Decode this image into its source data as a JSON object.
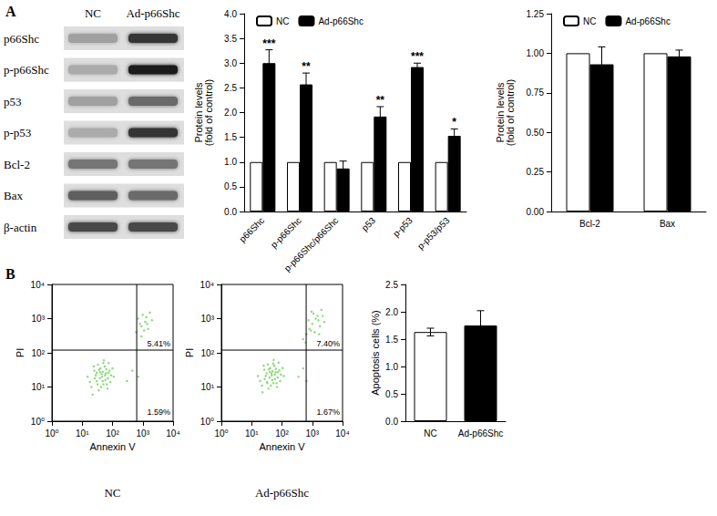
{
  "panels": [
    "A",
    "B"
  ],
  "blot": {
    "columns": [
      "NC",
      "Ad-p66Shc"
    ],
    "rows": [
      {
        "label": "p66Shc",
        "intensity": [
          0.35,
          0.85
        ]
      },
      {
        "label": "p-p66Shc",
        "intensity": [
          0.3,
          0.95
        ]
      },
      {
        "label": "p53",
        "intensity": [
          0.35,
          0.6
        ]
      },
      {
        "label": "p-p53",
        "intensity": [
          0.3,
          0.85
        ]
      },
      {
        "label": "Bcl-2",
        "intensity": [
          0.55,
          0.55
        ]
      },
      {
        "label": "Bax",
        "intensity": [
          0.65,
          0.6
        ]
      },
      {
        "label": "β-actin",
        "intensity": [
          0.75,
          0.75
        ]
      }
    ]
  },
  "chart_data": [
    {
      "type": "bar",
      "y_label": "Protein levels\n(fold of control)",
      "categories": [
        "p66Shc",
        "p-p66Shc",
        "p-p66Shc/p66Shc",
        "p53",
        "p-p53",
        "p-p53/p53"
      ],
      "series": [
        {
          "name": "NC",
          "color": "#ffffff",
          "values": [
            1,
            1,
            1,
            1,
            1,
            1
          ]
        },
        {
          "name": "Ad-p66Shc",
          "color": "#000000",
          "values": [
            3.0,
            2.57,
            0.87,
            1.92,
            2.92,
            1.53
          ],
          "errors": [
            0.27,
            0.23,
            0.15,
            0.2,
            0.08,
            0.14
          ]
        }
      ],
      "significance": [
        "***",
        "**",
        null,
        "**",
        "***",
        "*"
      ],
      "ylim": [
        0,
        4
      ],
      "yticks": [
        {
          "value": 0,
          "label": "0.0"
        },
        0.5,
        {
          "value": 1,
          "label": "1.0"
        },
        1.5,
        {
          "value": 2,
          "label": "2.0"
        },
        2.5,
        {
          "value": 3,
          "label": "3.0"
        },
        3.5,
        {
          "value": 4,
          "label": "4.0"
        }
      ],
      "legend": "upper left",
      "grid": false
    },
    {
      "type": "bar",
      "y_label": "Protein levels\n(fold of control)",
      "categories": [
        "Bcl-2",
        "Bax"
      ],
      "series": [
        {
          "name": "NC",
          "color": "#ffffff",
          "values": [
            1,
            1
          ]
        },
        {
          "name": "Ad-p66Shc",
          "color": "#000000",
          "values": [
            0.93,
            0.98
          ],
          "errors": [
            0.11,
            0.04
          ]
        }
      ],
      "ylim": [
        0,
        1.25
      ],
      "yticks": [
        {
          "value": 0,
          "label": "0.00"
        },
        0.25,
        {
          "value": 0.5,
          "label": "0.50"
        },
        0.75,
        {
          "value": 1,
          "label": "1.00"
        },
        1.25
      ],
      "legend": "upper left",
      "grid": false
    },
    {
      "type": "scatter",
      "caption": "NC",
      "x_label": "Annexin V",
      "y_label": "PI",
      "log": true,
      "xlim": [
        1,
        10000
      ],
      "ylim": [
        1,
        10000
      ],
      "xticks": [
        {
          "value": 1,
          "label": "10⁰"
        },
        {
          "value": 10,
          "label": "10¹"
        },
        {
          "value": 100,
          "label": "10²"
        },
        {
          "value": 1000,
          "label": "10³"
        },
        {
          "value": 10000,
          "label": "10⁴"
        }
      ],
      "yticks": [
        {
          "value": 1,
          "label": "10⁰"
        },
        {
          "value": 10,
          "label": "10¹"
        },
        {
          "value": 100,
          "label": "10²"
        },
        {
          "value": 1000,
          "label": "10³"
        },
        {
          "value": 10000,
          "label": "10⁴"
        }
      ],
      "color": "#74cf62",
      "points": [
        [
          20,
          10
        ],
        [
          30,
          15
        ],
        [
          45,
          20
        ],
        [
          60,
          25
        ],
        [
          25,
          30
        ],
        [
          35,
          8
        ],
        [
          50,
          12
        ],
        [
          70,
          18
        ],
        [
          40,
          35
        ],
        [
          28,
          22
        ],
        [
          55,
          40
        ],
        [
          80,
          30
        ],
        [
          18,
          14
        ],
        [
          38,
          18
        ],
        [
          65,
          12
        ],
        [
          90,
          22
        ],
        [
          48,
          28
        ],
        [
          33,
          45
        ],
        [
          22,
          6
        ],
        [
          75,
          50
        ],
        [
          42,
          10
        ],
        [
          58,
          16
        ],
        [
          100,
          35
        ],
        [
          30,
          26
        ],
        [
          52,
          60
        ],
        [
          15,
          20
        ],
        [
          68,
          9
        ],
        [
          44,
          24
        ],
        [
          36,
          32
        ],
        [
          85,
          14
        ],
        [
          26,
          18
        ],
        [
          62,
          33
        ],
        [
          47,
          15
        ],
        [
          39,
          27
        ],
        [
          110,
          20
        ],
        [
          24,
          40
        ],
        [
          57,
          22
        ],
        [
          73,
          26
        ],
        [
          32,
          12
        ],
        [
          50,
          50
        ],
        [
          300,
          15
        ],
        [
          450,
          30
        ],
        [
          700,
          20
        ],
        [
          600,
          400
        ],
        [
          900,
          600
        ],
        [
          1200,
          800
        ],
        [
          700,
          1000
        ],
        [
          1500,
          500
        ],
        [
          1000,
          1300
        ],
        [
          2000,
          900
        ],
        [
          800,
          700
        ],
        [
          1300,
          1100
        ],
        [
          1700,
          1500
        ],
        [
          1100,
          450
        ],
        [
          900,
          300
        ],
        [
          1400,
          700
        ]
      ],
      "gates": {
        "x": 630,
        "y": 120
      },
      "quadrant_labels": {
        "upper_right": "5.41%",
        "lower_right": "1.59%"
      },
      "grid": false
    },
    {
      "type": "scatter",
      "caption": "Ad-p66Shc",
      "x_label": "Annexin V",
      "y_label": "PI",
      "log": true,
      "xlim": [
        1,
        10000
      ],
      "ylim": [
        1,
        10000
      ],
      "xticks": [
        {
          "value": 1,
          "label": "10⁰"
        },
        {
          "value": 10,
          "label": "10¹"
        },
        {
          "value": 100,
          "label": "10²"
        },
        {
          "value": 1000,
          "label": "10³"
        },
        {
          "value": 10000,
          "label": "10⁴"
        }
      ],
      "yticks": [
        {
          "value": 1,
          "label": "10⁰"
        },
        {
          "value": 10,
          "label": "10¹"
        },
        {
          "value": 100,
          "label": "10²"
        },
        {
          "value": 1000,
          "label": "10³"
        },
        {
          "value": 10000,
          "label": "10⁴"
        }
      ],
      "color": "#74cf62",
      "points": [
        [
          22,
          11
        ],
        [
          32,
          14
        ],
        [
          46,
          22
        ],
        [
          62,
          27
        ],
        [
          26,
          32
        ],
        [
          36,
          9
        ],
        [
          52,
          13
        ],
        [
          72,
          19
        ],
        [
          41,
          36
        ],
        [
          29,
          21
        ],
        [
          56,
          42
        ],
        [
          82,
          31
        ],
        [
          19,
          15
        ],
        [
          39,
          19
        ],
        [
          66,
          13
        ],
        [
          92,
          23
        ],
        [
          49,
          29
        ],
        [
          34,
          46
        ],
        [
          23,
          7
        ],
        [
          77,
          52
        ],
        [
          43,
          11
        ],
        [
          59,
          17
        ],
        [
          105,
          36
        ],
        [
          31,
          25
        ],
        [
          53,
          62
        ],
        [
          16,
          21
        ],
        [
          69,
          10
        ],
        [
          45,
          25
        ],
        [
          37,
          33
        ],
        [
          87,
          15
        ],
        [
          27,
          17
        ],
        [
          63,
          34
        ],
        [
          48,
          16
        ],
        [
          40,
          28
        ],
        [
          115,
          21
        ],
        [
          25,
          42
        ],
        [
          58,
          23
        ],
        [
          74,
          27
        ],
        [
          33,
          13
        ],
        [
          51,
          48
        ],
        [
          350,
          20
        ],
        [
          500,
          35
        ],
        [
          650,
          15
        ],
        [
          500,
          250
        ],
        [
          650,
          350
        ],
        [
          800,
          500
        ],
        [
          1000,
          700
        ],
        [
          1200,
          400
        ],
        [
          1600,
          900
        ],
        [
          2200,
          1200
        ],
        [
          750,
          900
        ],
        [
          950,
          1600
        ],
        [
          1800,
          600
        ],
        [
          1300,
          1000
        ],
        [
          2500,
          800
        ],
        [
          600,
          200
        ],
        [
          1100,
          1400
        ],
        [
          1500,
          1200
        ],
        [
          900,
          450
        ],
        [
          1700,
          350
        ],
        [
          2000,
          1800
        ]
      ],
      "gates": {
        "x": 630,
        "y": 120
      },
      "quadrant_labels": {
        "upper_right": "7.40%",
        "lower_right": "1.67%"
      },
      "grid": false
    },
    {
      "type": "bar",
      "y_label": "Apoptosis cells (%)",
      "categories": [
        "NC",
        "Ad-p66Shc"
      ],
      "values": [
        1.63,
        1.75
      ],
      "errors": [
        0.07,
        0.27
      ],
      "colors": [
        "#ffffff",
        "#000000"
      ],
      "ylim": [
        0,
        2.5
      ],
      "yticks": [
        {
          "value": 0,
          "label": "0.0"
        },
        0.5,
        {
          "value": 1,
          "label": "1.0"
        },
        1.5,
        {
          "value": 2,
          "label": "2.0"
        },
        2.5
      ],
      "grid": false
    }
  ]
}
